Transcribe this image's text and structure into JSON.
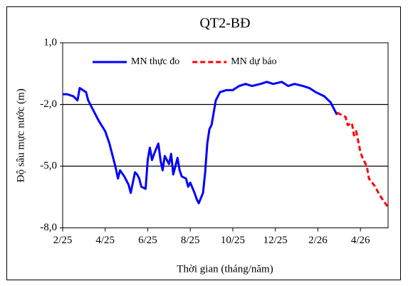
{
  "chart_data": {
    "type": "line",
    "title": "QT2-BĐ",
    "x_label": "Thời gian (tháng/năm)",
    "y_label": "Độ sâu mực nước (m)",
    "xlim": [
      0,
      15.3
    ],
    "ylim": [
      -8,
      1
    ],
    "xticks": [
      {
        "value": 0,
        "label": "2/25"
      },
      {
        "value": 2,
        "label": "4/25"
      },
      {
        "value": 4,
        "label": "6/25"
      },
      {
        "value": 6,
        "label": "8/25"
      },
      {
        "value": 8,
        "label": "10/25"
      },
      {
        "value": 10,
        "label": "12/25"
      },
      {
        "value": 12,
        "label": "2/26"
      },
      {
        "value": 14,
        "label": "4/26"
      }
    ],
    "yticks": [
      {
        "value": -8,
        "label": "-8,0"
      },
      {
        "value": -5,
        "label": "-5,0"
      },
      {
        "value": -2,
        "label": "-2,0"
      },
      {
        "value": 1,
        "label": "1,0"
      }
    ],
    "grid": true,
    "legend": "top",
    "series": [
      {
        "name": "MN thực đo",
        "color": "#0000ff",
        "dashed": false,
        "x": [
          0,
          0.2,
          0.5,
          0.7,
          0.8,
          1.1,
          1.2,
          1.4,
          1.7,
          2.0,
          2.2,
          2.3,
          2.5,
          2.6,
          2.7,
          2.9,
          3.1,
          3.2,
          3.4,
          3.5,
          3.6,
          3.7,
          3.9,
          4.0,
          4.1,
          4.2,
          4.3,
          4.5,
          4.6,
          4.7,
          4.8,
          5.0,
          5.1,
          5.2,
          5.4,
          5.5,
          5.6,
          5.8,
          5.9,
          6.0,
          6.2,
          6.3,
          6.4,
          6.6,
          6.7,
          6.8,
          6.9,
          7.0,
          7.2,
          7.4,
          7.7,
          8.0,
          8.3,
          8.6,
          8.9,
          9.3,
          9.6,
          9.9,
          10.3,
          10.6,
          10.9,
          11.3,
          11.6,
          11.9,
          12.3,
          12.6,
          12.7,
          12.9
        ],
        "values": [
          -1.5,
          -1.5,
          -1.6,
          -1.8,
          -1.2,
          -1.4,
          -1.8,
          -2.2,
          -2.8,
          -3.3,
          -3.9,
          -4.3,
          -5.1,
          -5.6,
          -5.2,
          -5.5,
          -5.9,
          -6.3,
          -5.3,
          -5.4,
          -5.6,
          -6.0,
          -6.1,
          -4.7,
          -4.1,
          -4.7,
          -4.4,
          -3.9,
          -4.7,
          -5.2,
          -4.5,
          -4.9,
          -4.4,
          -5.4,
          -4.6,
          -5.2,
          -5.5,
          -5.6,
          -6.0,
          -5.8,
          -6.3,
          -6.6,
          -6.8,
          -6.3,
          -5.3,
          -3.9,
          -3.2,
          -3.0,
          -1.8,
          -1.4,
          -1.3,
          -1.3,
          -1.1,
          -1.0,
          -1.1,
          -1.0,
          -0.9,
          -1.0,
          -0.9,
          -1.1,
          -1.0,
          -1.1,
          -1.2,
          -1.4,
          -1.6,
          -1.9,
          -2.1,
          -2.5
        ]
      },
      {
        "name": "MN dự báo",
        "color": "#ff0000",
        "dashed": true,
        "x": [
          12.9,
          13.1,
          13.3,
          13.4,
          13.6,
          13.7,
          13.8,
          14.0,
          14.1,
          14.3,
          14.4,
          14.7,
          14.9,
          15.1,
          15.3
        ],
        "values": [
          -2.4,
          -2.5,
          -2.6,
          -3.0,
          -2.9,
          -3.5,
          -3.3,
          -4.3,
          -4.6,
          -5.0,
          -5.6,
          -6.0,
          -6.4,
          -6.7,
          -7.0
        ]
      }
    ]
  }
}
